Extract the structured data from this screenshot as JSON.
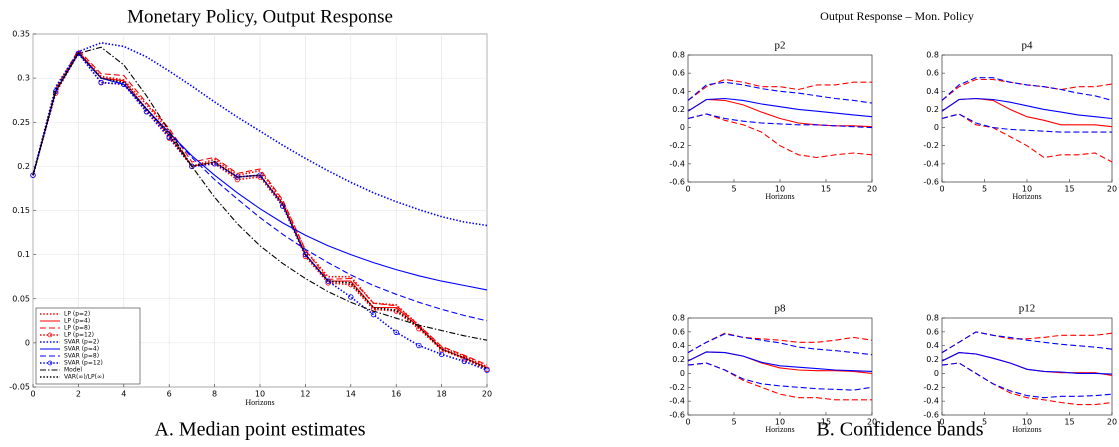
{
  "figure_title": "Output Response – Mon. Policy",
  "captions": [
    "A. Median point estimates",
    "B. Confidence bands"
  ],
  "chart_data": [
    {
      "type": "line",
      "title": "Monetary Policy, Output Response",
      "x_label": "Horizons",
      "x": [
        0,
        1,
        2,
        3,
        4,
        5,
        6,
        7,
        8,
        9,
        10,
        11,
        12,
        13,
        14,
        15,
        16,
        17,
        18,
        19,
        20
      ],
      "xlim": [
        0,
        20
      ],
      "xticks": [
        0,
        2,
        4,
        6,
        8,
        10,
        12,
        14,
        16,
        18,
        20
      ],
      "ylim": [
        -0.05,
        0.35
      ],
      "yticks": [
        -0.05,
        0,
        0.05,
        0.1,
        0.15,
        0.2,
        0.25,
        0.3,
        0.35
      ],
      "grid": true,
      "legend": "lower left",
      "series": [
        {
          "name": "LP (p=2)",
          "color": "#ff0000",
          "style": "dotted",
          "values": [
            0.19,
            0.287,
            0.33,
            0.302,
            0.298,
            0.27,
            0.24,
            0.2,
            0.208,
            0.19,
            0.195,
            0.16,
            0.105,
            0.075,
            0.075,
            0.045,
            0.043,
            0.02,
            -0.005,
            -0.015,
            -0.027
          ]
        },
        {
          "name": "LP (p=4)",
          "color": "#ff0000",
          "style": "solid",
          "values": [
            0.19,
            0.285,
            0.33,
            0.3,
            0.297,
            0.265,
            0.235,
            0.2,
            0.205,
            0.188,
            0.19,
            0.158,
            0.1,
            0.07,
            0.07,
            0.04,
            0.04,
            0.018,
            -0.007,
            -0.017,
            -0.028
          ]
        },
        {
          "name": "LP (p=8)",
          "color": "#ff0000",
          "style": "dashed",
          "values": [
            0.19,
            0.288,
            0.332,
            0.305,
            0.303,
            0.272,
            0.243,
            0.205,
            0.21,
            0.192,
            0.197,
            0.162,
            0.105,
            0.072,
            0.073,
            0.045,
            0.042,
            0.02,
            -0.004,
            -0.014,
            -0.025
          ]
        },
        {
          "name": "LP (p=12)",
          "color": "#ff0000",
          "style": "dotted",
          "marker": "circle",
          "values": [
            0.19,
            0.283,
            0.328,
            0.295,
            0.293,
            0.262,
            0.232,
            0.2,
            0.203,
            0.185,
            0.188,
            0.155,
            0.098,
            0.068,
            0.066,
            0.038,
            0.036,
            0.016,
            -0.008,
            -0.018,
            -0.03
          ]
        },
        {
          "name": "SVAR (p=2)",
          "color": "#0000ff",
          "style": "dotted",
          "values": [
            0.19,
            0.29,
            0.33,
            0.34,
            0.336,
            0.324,
            0.308,
            0.291,
            0.273,
            0.256,
            0.24,
            0.224,
            0.209,
            0.195,
            0.182,
            0.17,
            0.16,
            0.151,
            0.143,
            0.137,
            0.133
          ]
        },
        {
          "name": "SVAR (p=4)",
          "color": "#0000ff",
          "style": "solid",
          "values": [
            0.19,
            0.285,
            0.328,
            0.3,
            0.293,
            0.265,
            0.238,
            0.212,
            0.19,
            0.17,
            0.152,
            0.136,
            0.122,
            0.11,
            0.1,
            0.091,
            0.083,
            0.076,
            0.07,
            0.065,
            0.06
          ]
        },
        {
          "name": "SVAR (p=8)",
          "color": "#0000ff",
          "style": "dashed",
          "values": [
            0.19,
            0.285,
            0.328,
            0.3,
            0.293,
            0.265,
            0.238,
            0.21,
            0.185,
            0.163,
            0.142,
            0.123,
            0.106,
            0.091,
            0.077,
            0.065,
            0.055,
            0.046,
            0.038,
            0.031,
            0.025
          ]
        },
        {
          "name": "SVAR (p=12)",
          "color": "#0000ff",
          "style": "dotted",
          "marker": "circle",
          "values": [
            0.19,
            0.285,
            0.328,
            0.295,
            0.293,
            0.262,
            0.233,
            0.2,
            0.203,
            0.188,
            0.19,
            0.155,
            0.1,
            0.07,
            0.052,
            0.032,
            0.012,
            -0.003,
            -0.013,
            -0.021,
            -0.031
          ]
        },
        {
          "name": "Model",
          "color": "#000000",
          "style": "dashdot",
          "values": [
            0.19,
            0.285,
            0.328,
            0.335,
            0.315,
            0.28,
            0.24,
            0.2,
            0.165,
            0.135,
            0.11,
            0.09,
            0.073,
            0.058,
            0.046,
            0.036,
            0.028,
            0.02,
            0.014,
            0.008,
            0.003
          ]
        },
        {
          "name": "VAR(∞)/LP(∞)",
          "color": "#000000",
          "style": "dotted",
          "values": [
            0.19,
            0.286,
            0.329,
            0.3,
            0.295,
            0.265,
            0.236,
            0.2,
            0.205,
            0.188,
            0.19,
            0.157,
            0.1,
            0.07,
            0.068,
            0.04,
            0.037,
            0.018,
            -0.007,
            -0.017,
            -0.029
          ]
        }
      ]
    },
    {
      "type": "line",
      "title": "p2",
      "x_label": "Horizons",
      "x": [
        0,
        2,
        4,
        6,
        8,
        10,
        12,
        14,
        16,
        18,
        20
      ],
      "xlim": [
        0,
        20
      ],
      "xticks": [
        0,
        5,
        10,
        15,
        20
      ],
      "ylim": [
        -0.6,
        0.8
      ],
      "yticks": [
        -0.6,
        -0.4,
        -0.2,
        0,
        0.2,
        0.4,
        0.6,
        0.8
      ],
      "grid": false,
      "series": [
        {
          "color": "#ff0000",
          "style": "solid",
          "values": [
            0.18,
            0.31,
            0.3,
            0.25,
            0.17,
            0.1,
            0.05,
            0.03,
            0.02,
            0.02,
            0.01
          ]
        },
        {
          "color": "#ff0000",
          "style": "dashed",
          "values": [
            0.3,
            0.45,
            0.53,
            0.5,
            0.45,
            0.45,
            0.42,
            0.47,
            0.47,
            0.5,
            0.5
          ]
        },
        {
          "color": "#ff0000",
          "style": "dashed",
          "values": [
            0.1,
            0.15,
            0.08,
            0.03,
            -0.05,
            -0.2,
            -0.3,
            -0.33,
            -0.3,
            -0.28,
            -0.3
          ]
        },
        {
          "color": "#0000ff",
          "style": "solid",
          "values": [
            0.18,
            0.31,
            0.32,
            0.3,
            0.26,
            0.23,
            0.2,
            0.18,
            0.16,
            0.14,
            0.12
          ]
        },
        {
          "color": "#0000ff",
          "style": "dashed",
          "values": [
            0.3,
            0.47,
            0.5,
            0.47,
            0.43,
            0.4,
            0.38,
            0.35,
            0.32,
            0.3,
            0.27
          ]
        },
        {
          "color": "#0000ff",
          "style": "dashed",
          "values": [
            0.1,
            0.15,
            0.1,
            0.07,
            0.05,
            0.04,
            0.03,
            0.03,
            0.02,
            0.01,
            0
          ]
        }
      ]
    },
    {
      "type": "line",
      "title": "p4",
      "x_label": "Horizons",
      "x": [
        0,
        2,
        4,
        6,
        8,
        10,
        12,
        14,
        16,
        18,
        20
      ],
      "xlim": [
        0,
        20
      ],
      "xticks": [
        0,
        5,
        10,
        15,
        20
      ],
      "ylim": [
        -0.6,
        0.8
      ],
      "yticks": [
        -0.6,
        -0.4,
        -0.2,
        0,
        0.2,
        0.4,
        0.6,
        0.8
      ],
      "grid": false,
      "series": [
        {
          "color": "#ff0000",
          "style": "solid",
          "values": [
            0.18,
            0.31,
            0.32,
            0.3,
            0.2,
            0.12,
            0.08,
            0.03,
            0.03,
            0.03,
            0.01
          ]
        },
        {
          "color": "#ff0000",
          "style": "dashed",
          "values": [
            0.3,
            0.45,
            0.53,
            0.53,
            0.5,
            0.47,
            0.45,
            0.42,
            0.45,
            0.45,
            0.48
          ]
        },
        {
          "color": "#ff0000",
          "style": "dashed",
          "values": [
            0.1,
            0.15,
            0.03,
            0,
            -0.1,
            -0.2,
            -0.33,
            -0.3,
            -0.3,
            -0.28,
            -0.38
          ]
        },
        {
          "color": "#0000ff",
          "style": "solid",
          "values": [
            0.18,
            0.31,
            0.32,
            0.31,
            0.28,
            0.24,
            0.2,
            0.17,
            0.14,
            0.12,
            0.1
          ]
        },
        {
          "color": "#0000ff",
          "style": "dashed",
          "values": [
            0.3,
            0.47,
            0.55,
            0.55,
            0.5,
            0.47,
            0.45,
            0.42,
            0.38,
            0.35,
            0.3
          ]
        },
        {
          "color": "#0000ff",
          "style": "dashed",
          "values": [
            0.1,
            0.15,
            0.05,
            0,
            -0.02,
            -0.03,
            -0.04,
            -0.05,
            -0.05,
            -0.05,
            -0.05
          ]
        }
      ]
    },
    {
      "type": "line",
      "title": "p8",
      "x_label": "Horizons",
      "x": [
        0,
        2,
        4,
        6,
        8,
        10,
        12,
        14,
        16,
        18,
        20
      ],
      "xlim": [
        0,
        20
      ],
      "xticks": [
        0,
        5,
        10,
        15,
        20
      ],
      "ylim": [
        -0.6,
        0.8
      ],
      "yticks": [
        -0.6,
        -0.4,
        -0.2,
        0,
        0.2,
        0.4,
        0.6,
        0.8
      ],
      "grid": false,
      "series": [
        {
          "color": "#ff0000",
          "style": "solid",
          "values": [
            0.18,
            0.31,
            0.3,
            0.25,
            0.15,
            0.08,
            0.05,
            0.04,
            0.04,
            0.03,
            0
          ]
        },
        {
          "color": "#ff0000",
          "style": "dashed",
          "values": [
            0.3,
            0.45,
            0.58,
            0.52,
            0.5,
            0.48,
            0.45,
            0.45,
            0.48,
            0.52,
            0.48
          ]
        },
        {
          "color": "#ff0000",
          "style": "dashed",
          "values": [
            0.12,
            0.15,
            0.05,
            -0.1,
            -0.2,
            -0.3,
            -0.35,
            -0.35,
            -0.38,
            -0.38,
            -0.38
          ]
        },
        {
          "color": "#0000ff",
          "style": "solid",
          "values": [
            0.18,
            0.31,
            0.3,
            0.25,
            0.16,
            0.11,
            0.09,
            0.07,
            0.05,
            0.04,
            0.03
          ]
        },
        {
          "color": "#0000ff",
          "style": "dashed",
          "values": [
            0.3,
            0.45,
            0.57,
            0.52,
            0.48,
            0.44,
            0.38,
            0.35,
            0.33,
            0.3,
            0.27
          ]
        },
        {
          "color": "#0000ff",
          "style": "dashed",
          "values": [
            0.12,
            0.15,
            0.05,
            -0.08,
            -0.15,
            -0.18,
            -0.2,
            -0.22,
            -0.23,
            -0.24,
            -0.2
          ]
        }
      ]
    },
    {
      "type": "line",
      "title": "p12",
      "x_label": "Horizons",
      "x": [
        0,
        2,
        4,
        6,
        8,
        10,
        12,
        14,
        16,
        18,
        20
      ],
      "xlim": [
        0,
        20
      ],
      "xticks": [
        0,
        5,
        10,
        15,
        20
      ],
      "ylim": [
        -0.6,
        0.8
      ],
      "yticks": [
        -0.6,
        -0.4,
        -0.2,
        0,
        0.2,
        0.4,
        0.6,
        0.8
      ],
      "grid": false,
      "series": [
        {
          "color": "#ff0000",
          "style": "solid",
          "values": [
            0.18,
            0.3,
            0.28,
            0.22,
            0.15,
            0.06,
            0.03,
            0.01,
            0.01,
            0.01,
            -0.03
          ]
        },
        {
          "color": "#ff0000",
          "style": "dashed",
          "values": [
            0.3,
            0.45,
            0.6,
            0.55,
            0.5,
            0.5,
            0.52,
            0.55,
            0.55,
            0.55,
            0.58
          ]
        },
        {
          "color": "#ff0000",
          "style": "dashed",
          "values": [
            0.12,
            0.15,
            0,
            -0.15,
            -0.28,
            -0.35,
            -0.38,
            -0.42,
            -0.45,
            -0.45,
            -0.42
          ]
        },
        {
          "color": "#0000ff",
          "style": "solid",
          "values": [
            0.18,
            0.3,
            0.28,
            0.22,
            0.15,
            0.06,
            0.03,
            0.02,
            0,
            0,
            -0.01
          ]
        },
        {
          "color": "#0000ff",
          "style": "dashed",
          "values": [
            0.3,
            0.45,
            0.6,
            0.55,
            0.52,
            0.48,
            0.45,
            0.42,
            0.4,
            0.38,
            0.35
          ]
        },
        {
          "color": "#0000ff",
          "style": "dashed",
          "values": [
            0.12,
            0.15,
            0,
            -0.15,
            -0.25,
            -0.32,
            -0.35,
            -0.33,
            -0.33,
            -0.32,
            -0.3
          ]
        }
      ]
    }
  ]
}
